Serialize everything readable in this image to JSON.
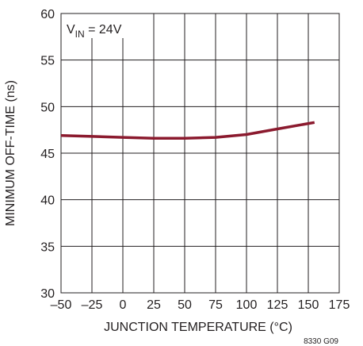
{
  "chart_data": {
    "type": "line",
    "xlabel": "JUNCTION TEMPERATURE (°C)",
    "ylabel": "MINIMUM OFF-TIME (ns)",
    "xlim": [
      -50,
      175
    ],
    "ylim": [
      30,
      60
    ],
    "x_ticks": [
      -50,
      -25,
      0,
      25,
      50,
      75,
      100,
      125,
      150,
      175
    ],
    "x_tick_labels": [
      "–50",
      "–25",
      "0",
      "25",
      "50",
      "75",
      "100",
      "125",
      "150",
      "175"
    ],
    "y_ticks": [
      30,
      35,
      40,
      45,
      50,
      55,
      60
    ],
    "y_tick_labels": [
      "30",
      "35",
      "40",
      "45",
      "50",
      "55",
      "60"
    ],
    "grid": true,
    "annotation": {
      "base": "V",
      "sub": "IN",
      "rest": " = 24V"
    },
    "series": [
      {
        "color": "#8b1a2e",
        "x": [
          -50,
          -25,
          0,
          25,
          50,
          75,
          100,
          125,
          155
        ],
        "y": [
          46.9,
          46.8,
          46.7,
          46.6,
          46.6,
          46.7,
          47.0,
          47.6,
          48.3
        ]
      }
    ]
  },
  "figure_id": "8330 G09"
}
